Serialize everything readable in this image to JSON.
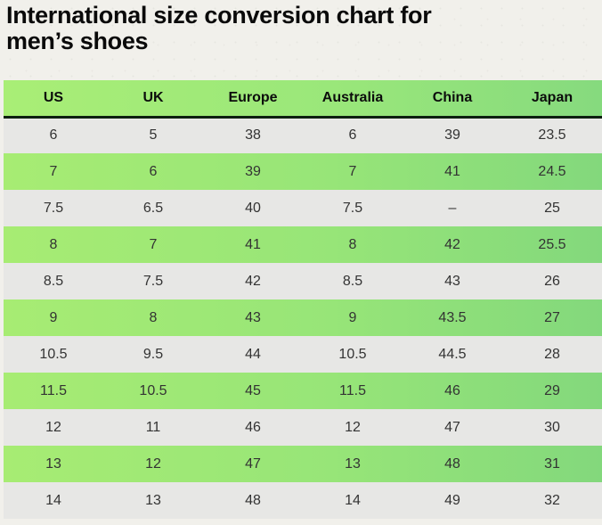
{
  "page": {
    "title": "International size conversion chart for men’s shoes",
    "title_lines": [
      "International size conversion chart for",
      "men’s shoes"
    ],
    "background_color": "#f1f0eb"
  },
  "table": {
    "columns": [
      "US",
      "UK",
      "Europe",
      "Australia",
      "China",
      "Japan"
    ],
    "rows": [
      [
        "6",
        "5",
        "38",
        "6",
        "39",
        "23.5"
      ],
      [
        "7",
        "6",
        "39",
        "7",
        "41",
        "24.5"
      ],
      [
        "7.5",
        "6.5",
        "40",
        "7.5",
        "–",
        "25"
      ],
      [
        "8",
        "7",
        "41",
        "8",
        "42",
        "25.5"
      ],
      [
        "8.5",
        "7.5",
        "42",
        "8.5",
        "43",
        "26"
      ],
      [
        "9",
        "8",
        "43",
        "9",
        "43.5",
        "27"
      ],
      [
        "10.5",
        "9.5",
        "44",
        "10.5",
        "44.5",
        "28"
      ],
      [
        "11.5",
        "10.5",
        "45",
        "11.5",
        "46",
        "29"
      ],
      [
        "12",
        "11",
        "46",
        "12",
        "47",
        "30"
      ],
      [
        "13",
        "12",
        "47",
        "13",
        "48",
        "31"
      ],
      [
        "14",
        "13",
        "48",
        "14",
        "49",
        "32"
      ]
    ],
    "colors": {
      "header_gradient_start": "#a9ee76",
      "header_gradient_end": "#86da7e",
      "green_row_gradient_start": "#a7ec73",
      "green_row_gradient_end": "#83d87c",
      "gray_row": "#e7e7e5",
      "header_bottom_border": "#0d1f10",
      "header_text": "#0c0c0c",
      "cell_text": "#333333"
    }
  },
  "chart_data": {
    "type": "table",
    "title": "International size conversion chart for men’s shoes",
    "columns": [
      "US",
      "UK",
      "Europe",
      "Australia",
      "China",
      "Japan"
    ],
    "rows": [
      [
        "6",
        "5",
        "38",
        "6",
        "39",
        "23.5"
      ],
      [
        "7",
        "6",
        "39",
        "7",
        "41",
        "24.5"
      ],
      [
        "7.5",
        "6.5",
        "40",
        "7.5",
        "–",
        "25"
      ],
      [
        "8",
        "7",
        "41",
        "8",
        "42",
        "25.5"
      ],
      [
        "8.5",
        "7.5",
        "42",
        "8.5",
        "43",
        "26"
      ],
      [
        "9",
        "8",
        "43",
        "9",
        "43.5",
        "27"
      ],
      [
        "10.5",
        "9.5",
        "44",
        "10.5",
        "44.5",
        "28"
      ],
      [
        "11.5",
        "10.5",
        "45",
        "11.5",
        "46",
        "29"
      ],
      [
        "12",
        "11",
        "46",
        "12",
        "47",
        "30"
      ],
      [
        "13",
        "12",
        "47",
        "13",
        "48",
        "31"
      ],
      [
        "14",
        "13",
        "48",
        "14",
        "49",
        "32"
      ]
    ],
    "layout_hints": {
      "row_striping": "alternating gray and green-gradient rows, first data row gray",
      "header_style": "green horizontal gradient with thick dark bottom border"
    }
  }
}
